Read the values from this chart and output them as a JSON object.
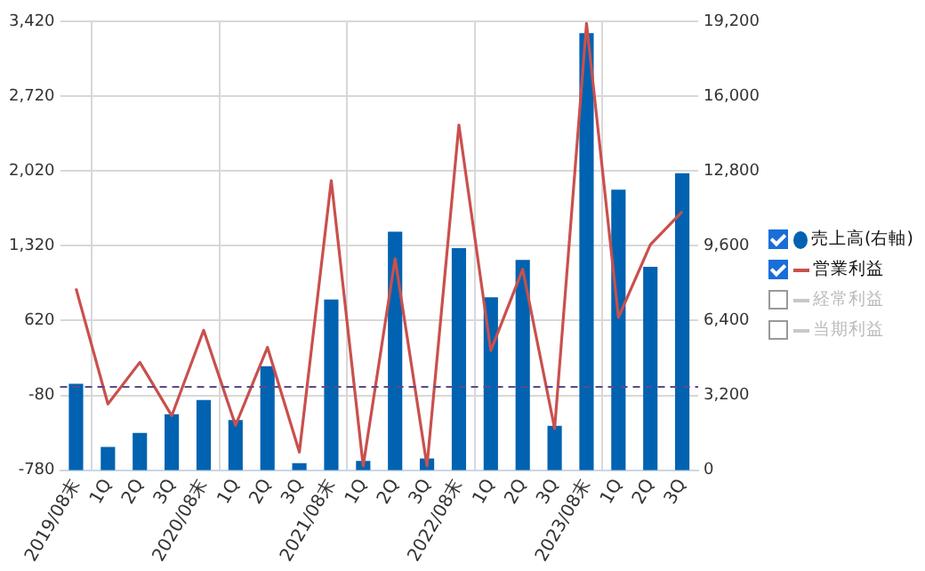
{
  "chart_data": {
    "type": "bar",
    "categories": [
      "2019/08末",
      "1Q",
      "2Q",
      "3Q",
      "2020/08末",
      "1Q",
      "2Q",
      "3Q",
      "2021/08末",
      "1Q",
      "2Q",
      "3Q",
      "2022/08末",
      "1Q",
      "2Q",
      "3Q",
      "2023/08末",
      "1Q",
      "2Q",
      "3Q"
    ],
    "series": [
      {
        "name": "売上高(右軸)",
        "axis": "y2",
        "color": "#0062b0",
        "values": [
          3700,
          1000,
          1600,
          2400,
          3000,
          2150,
          4450,
          300,
          7300,
          400,
          10200,
          500,
          9500,
          7400,
          9000,
          1900,
          18700,
          12000,
          8700,
          12700
        ]
      },
      {
        "name": "営業利益",
        "type": "line",
        "color": "#c9504d",
        "values": [
          920,
          -160,
          230,
          -270,
          530,
          -360,
          370,
          -610,
          1930,
          -740,
          1200,
          -740,
          2450,
          340,
          1100,
          -390,
          3400,
          650,
          1330,
          1640
        ]
      },
      {
        "name": "経常利益",
        "type": "line",
        "color": "#c8c8c8",
        "values": [
          null,
          null,
          null,
          null,
          null,
          null,
          null,
          null,
          null,
          null,
          null,
          null,
          null,
          null,
          null,
          null,
          null,
          null,
          null,
          null
        ]
      },
      {
        "name": "当期利益",
        "type": "line",
        "color": "#c8c8c8",
        "values": [
          null,
          null,
          null,
          null,
          null,
          null,
          null,
          null,
          null,
          null,
          null,
          null,
          null,
          null,
          null,
          null,
          null,
          null,
          null,
          null
        ]
      }
    ],
    "ylim": [
      -780,
      3420
    ],
    "yticks": [
      {
        "value": -780,
        "label": "-780"
      },
      {
        "value": -80,
        "label": "-80"
      },
      {
        "value": 620,
        "label": "620"
      },
      {
        "value": 1320,
        "label": "1,320"
      },
      {
        "value": 2020,
        "label": "2,020"
      },
      {
        "value": 2720,
        "label": "2,720"
      },
      {
        "value": 3420,
        "label": "3,420"
      }
    ],
    "y2lim": [
      0,
      19200
    ],
    "y2ticks": [
      {
        "value": 0,
        "label": "0"
      },
      {
        "value": 3200,
        "label": "3,200"
      },
      {
        "value": 6400,
        "label": "6,400"
      },
      {
        "value": 9600,
        "label": "9,600"
      },
      {
        "value": 12800,
        "label": "12,800"
      },
      {
        "value": 16000,
        "label": "16,000"
      },
      {
        "value": 19200,
        "label": "19,200"
      }
    ],
    "ref_lines": [
      {
        "axis": "y",
        "value": 0,
        "color": "#5b4a8a",
        "line_style": "dashed"
      }
    ],
    "grid": true,
    "legend": "right",
    "marker": "none"
  }
}
